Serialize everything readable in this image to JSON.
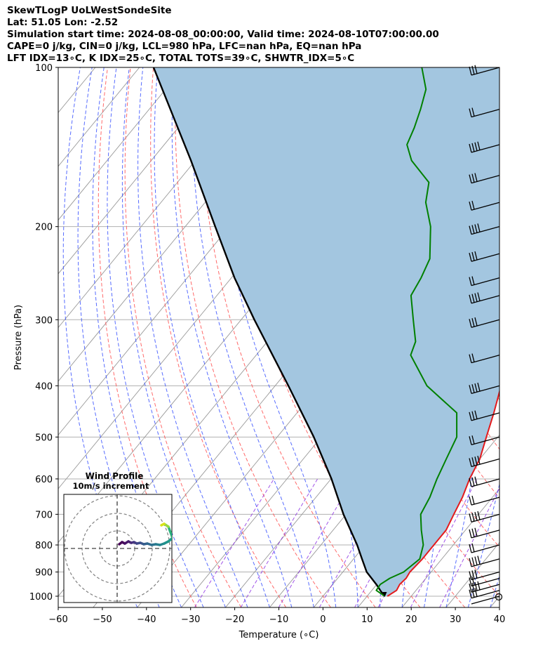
{
  "header": {
    "title": "SkewTLogP UoLWestSondeSite",
    "location": "Lat: 51.05   Lon: -2.52",
    "times": "Simulation start time: 2024-08-08_00:00:00, Valid time: 2024-08-10T07:00:00.00",
    "indices1": "CAPE=0 j/kg, CIN=0 j/kg, LCL=980 hPa, LFC=nan hPa, EQ=nan hPa",
    "indices2": "LFT IDX=13∘C, K IDX=25∘C, TOTAL TOTS=39∘C, SHWTR_IDX=5∘C"
  },
  "chart_data": [
    {
      "type": "skew-t log-p",
      "xlabel": "Temperature (∘C)",
      "ylabel": "Pressure (hPa)",
      "xlim": [
        -60,
        40
      ],
      "ylim": [
        1050,
        100
      ],
      "y_scale": "log",
      "grid": true,
      "x_ticks": [
        "−60",
        "−50",
        "−40",
        "−30",
        "−20",
        "−10",
        "0",
        "10",
        "20",
        "30",
        "40"
      ],
      "y_ticks": [
        "100",
        "200",
        "300",
        "400",
        "500",
        "600",
        "700",
        "800",
        "900",
        "1000"
      ],
      "colors": {
        "temperature": "#e41a1c",
        "dewpoint": "#008000",
        "parcel": "#000000",
        "shade": "#a3c6e0",
        "dry_adiabat": "#ff5a5a",
        "moist_adiabat": "#3a52ff",
        "mixing_ratio": "#8a2be2",
        "isotherm": "#999999"
      },
      "series": [
        {
          "name": "temperature",
          "pressure": [
            1000,
            975,
            950,
            925,
            900,
            850,
            800,
            750,
            700,
            650,
            600,
            550,
            500,
            450,
            400,
            350,
            300,
            250,
            200,
            180,
            170,
            150,
            140,
            130,
            120,
            110,
            105,
            100
          ],
          "temperature": [
            14.6,
            15.6,
            15.2,
            15.5,
            15.2,
            15.6,
            15.6,
            15.6,
            14.4,
            13.2,
            11.4,
            10.0,
            7.4,
            4.6,
            1.2,
            -3.0,
            -7.8,
            -13.4,
            -20.4,
            -24.2,
            -24.2,
            -25.8,
            -28.3,
            -31.3,
            -36.0,
            -41.3,
            -44.0,
            -47.0
          ]
        },
        {
          "name": "dewpoint",
          "pressure": [
            1000,
            975,
            950,
            925,
            900,
            850,
            800,
            750,
            700,
            650,
            600,
            550,
            500,
            450,
            400,
            350,
            330,
            300,
            270,
            250,
            230,
            200,
            180,
            165,
            150,
            140,
            130,
            120,
            110,
            100
          ],
          "temperature": [
            14.0,
            11.0,
            10.8,
            11.8,
            13.8,
            15.0,
            13.2,
            10.0,
            6.9,
            5.8,
            4.0,
            2.4,
            0.7,
            -3.8,
            -15.6,
            -25.0,
            -26.4,
            -31.0,
            -36.0,
            -37.0,
            -38.6,
            -44.4,
            -50.0,
            -53.0,
            -61.0,
            -65.0,
            -66.5,
            -68.5,
            -71.0,
            -76.0
          ]
        },
        {
          "name": "parcel",
          "pressure": [
            1000,
            980,
            950,
            900,
            850,
            800,
            700,
            600,
            500,
            400,
            300,
            250,
            200,
            150,
            100
          ],
          "temperature": [
            14.0,
            12.3,
            9.9,
            5.4,
            1.9,
            -1.8,
            -10.6,
            -19.9,
            -31.7,
            -47.0,
            -67.0,
            -79.3,
            -93.2,
            -111.0,
            -136.8
          ]
        }
      ],
      "wind_barbs_pressure": [
        1000,
        975,
        950,
        925,
        900,
        850,
        800,
        750,
        700,
        650,
        600,
        550,
        500,
        450,
        400,
        350,
        300,
        270,
        250,
        225,
        200,
        180,
        160,
        140,
        120,
        100
      ]
    },
    {
      "type": "hodograph",
      "title": "Wind Profile",
      "subtitle": "10m/s increment"
    }
  ]
}
